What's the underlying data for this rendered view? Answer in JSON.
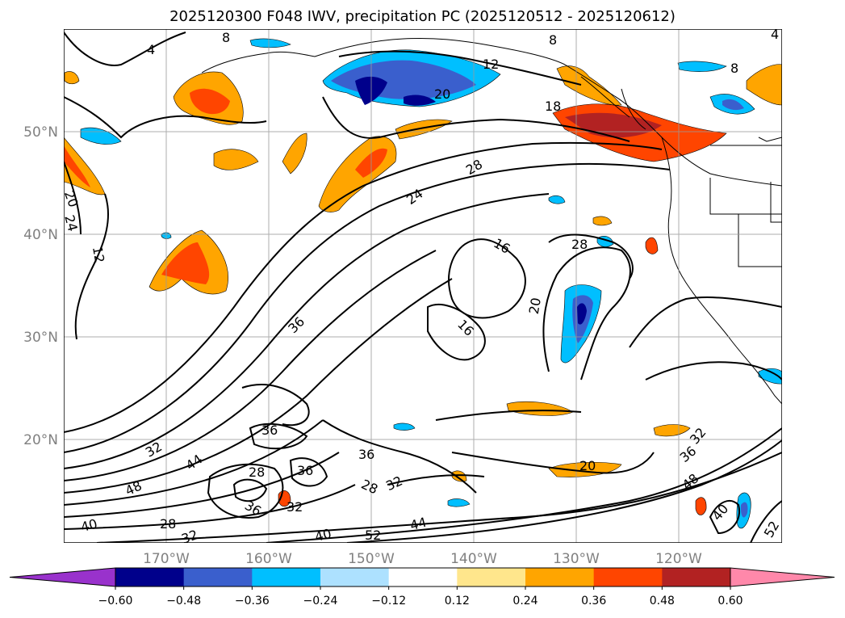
{
  "title": "2025120300 F048 IWV, precipitation PC (2025120512 - 2025120612)",
  "lat_labels": [
    "50°N",
    "40°N",
    "30°N",
    "20°N"
  ],
  "lon_labels": [
    "170°W",
    "160°W",
    "150°W",
    "140°W",
    "130°W",
    "120°W"
  ],
  "contour_labels": {
    "c4": "4",
    "c8a": "8",
    "c8b": "8",
    "c8c": "8",
    "c12a": "12",
    "c12b": "12",
    "c16a": "16",
    "c16b": "16",
    "c18": "18",
    "c20a": "20",
    "c20b": "20",
    "c20c": "20",
    "c20d": "20",
    "c24a": "24",
    "c24b": "24",
    "c28a": "28",
    "c28b": "28",
    "c28c": "28",
    "c28d": "28",
    "c28e": "28",
    "c32a": "32",
    "c32b": "32",
    "c32c": "32",
    "c32d": "32",
    "c36a": "36",
    "c36b": "36",
    "c36c": "36",
    "c36d": "36",
    "c36e": "36",
    "c36f": "36",
    "c40a": "40",
    "c40b": "40",
    "c40c": "40",
    "c44a": "44",
    "c44b": "44",
    "c48a": "48",
    "c48b": "48",
    "c52a": "52",
    "c52b": "52",
    "c4b": "4"
  },
  "colorbar": {
    "ticks": [
      "−0.60",
      "−0.48",
      "−0.36",
      "−0.24",
      "−0.12",
      "0.12",
      "0.24",
      "0.36",
      "0.48",
      "0.60"
    ],
    "colors": [
      "#9932CC",
      "#00008B",
      "#3A5FCD",
      "#00BFFF",
      "#ADE1FF",
      "#FFFFFF",
      "#FFE68C",
      "#FFA500",
      "#FF4500",
      "#B22222",
      "#FF88AA"
    ]
  }
}
